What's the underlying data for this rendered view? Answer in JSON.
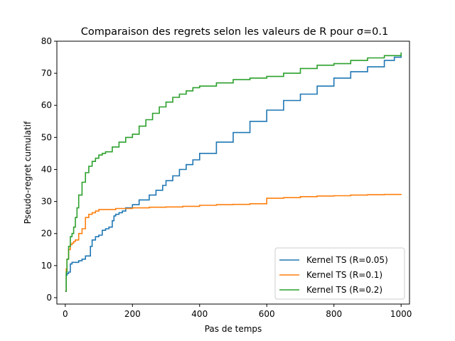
{
  "chart_data": {
    "type": "line",
    "title": "Comparaison des regrets selon les valeurs de R pour σ=0.1",
    "xlabel": "Pas de temps",
    "ylabel": "Pseudo-regret cumulatif",
    "xlim": [
      -25,
      1025
    ],
    "ylim": [
      -2,
      80
    ],
    "xticks": [
      0,
      200,
      400,
      600,
      800,
      1000
    ],
    "yticks": [
      0,
      10,
      20,
      30,
      40,
      50,
      60,
      70,
      80
    ],
    "grid": false,
    "legend_position": "lower-right",
    "series": [
      {
        "name": "Kernel TS (R=0.05)",
        "color": "#1f77b4",
        "x": [
          0,
          3,
          5,
          10,
          15,
          20,
          30,
          40,
          50,
          60,
          70,
          75,
          80,
          90,
          100,
          110,
          120,
          130,
          140,
          145,
          150,
          160,
          170,
          180,
          200,
          220,
          250,
          270,
          290,
          300,
          320,
          340,
          360,
          380,
          400,
          450,
          500,
          550,
          600,
          650,
          700,
          750,
          800,
          850,
          900,
          950,
          980,
          1000
        ],
        "values": [
          2,
          7,
          7.5,
          8,
          10.5,
          11,
          11,
          11.5,
          12,
          13,
          13,
          16,
          18,
          19,
          19.5,
          21,
          21.5,
          22,
          24,
          25.5,
          26,
          26.5,
          27,
          28,
          29,
          30.5,
          32,
          33.5,
          35,
          36.5,
          38,
          40,
          41.5,
          43,
          45,
          48.5,
          51.5,
          55,
          58.5,
          61.5,
          63.5,
          66,
          68.5,
          70.5,
          72,
          74,
          75,
          76
        ]
      },
      {
        "name": "Kernel TS (R=0.1)",
        "color": "#ff7f0e",
        "x": [
          0,
          3,
          5,
          10,
          15,
          20,
          25,
          30,
          40,
          50,
          60,
          70,
          80,
          90,
          100,
          120,
          150,
          200,
          250,
          300,
          350,
          400,
          450,
          500,
          550,
          595,
          600,
          650,
          700,
          750,
          800,
          850,
          900,
          950,
          1000
        ],
        "values": [
          2,
          9,
          12,
          15,
          16.5,
          17,
          17.5,
          18,
          20,
          21.5,
          25,
          26,
          26.5,
          27,
          27.5,
          27.5,
          27.8,
          28,
          28.2,
          28.3,
          28.5,
          28.8,
          29,
          29.1,
          29.3,
          29.3,
          31,
          31.2,
          31.5,
          31.7,
          31.8,
          32,
          32.1,
          32.2,
          32.3
        ]
      },
      {
        "name": "Kernel TS (R=0.2)",
        "color": "#2ca02c",
        "x": [
          0,
          3,
          5,
          10,
          15,
          20,
          25,
          30,
          35,
          40,
          50,
          60,
          70,
          80,
          90,
          100,
          110,
          120,
          140,
          160,
          180,
          200,
          220,
          240,
          260,
          280,
          300,
          320,
          340,
          360,
          380,
          400,
          450,
          500,
          550,
          600,
          650,
          700,
          750,
          800,
          850,
          900,
          950,
          1000
        ],
        "values": [
          2,
          8,
          12,
          16,
          19,
          20,
          22,
          25,
          28,
          32,
          36,
          39,
          41,
          42.5,
          43.5,
          44.5,
          45,
          45.5,
          47,
          48.5,
          50,
          51,
          53.5,
          55.5,
          57.5,
          59.5,
          61,
          62.5,
          63.5,
          64.5,
          65.5,
          66,
          67,
          68,
          68.5,
          69,
          70,
          71.5,
          72.5,
          73,
          74,
          74.8,
          75.5,
          76.5
        ]
      }
    ]
  }
}
